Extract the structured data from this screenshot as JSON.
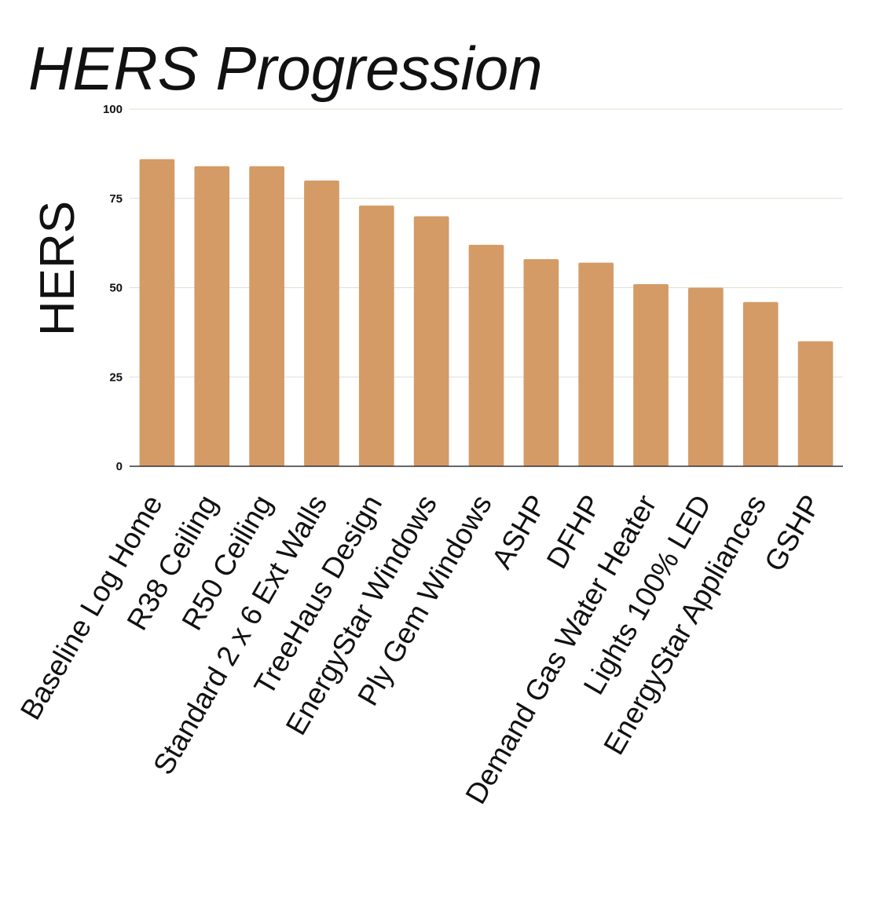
{
  "chart_data": {
    "type": "bar",
    "title": "HERS Progression",
    "xlabel": "",
    "ylabel": "HERS",
    "ylim": [
      0,
      100
    ],
    "yticks": [
      0,
      25,
      50,
      75,
      100
    ],
    "grid": true,
    "bar_color": "#d49b66",
    "categories": [
      "Baseline Log Home",
      "R38 Ceiling",
      "R50 Ceiling",
      "Standard 2 x 6 Ext Walls",
      "TreeHaus Design",
      "EnergyStar Windows",
      "Ply Gem Windows",
      "ASHP",
      "DFHP",
      "Demand Gas Water Heater",
      "Lights 100% LED",
      "EnergyStar Appliances",
      "GSHP"
    ],
    "values": [
      86,
      84,
      84,
      80,
      73,
      70,
      62,
      58,
      57,
      51,
      50,
      46,
      35
    ]
  }
}
